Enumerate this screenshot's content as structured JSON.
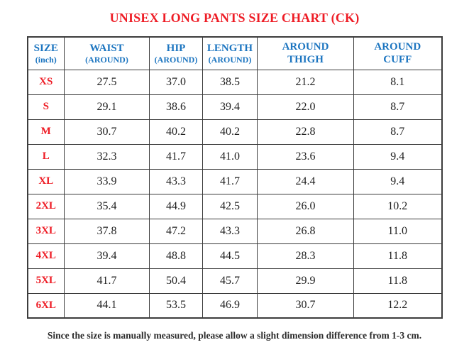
{
  "title": "UNISEX LONG PANTS SIZE CHART (CK)",
  "footer_note": "Since the size is manually measured, please allow a slight dimension difference from 1-3 cm.",
  "colors": {
    "title_red": "#ee1c25",
    "size_red": "#ee1c25",
    "header_blue": "#1c75c0",
    "value_black": "#1f1f1f",
    "border_gray": "#3c3c3c"
  },
  "table": {
    "columns": [
      {
        "key": "size",
        "line1": "SIZE",
        "line2": "(inch)",
        "small_line2": true
      },
      {
        "key": "waist",
        "line1": "WAIST",
        "line2": "(AROUND)",
        "small_line2": true
      },
      {
        "key": "hip",
        "line1": "HIP",
        "line2": "(AROUND)",
        "small_line2": true
      },
      {
        "key": "length",
        "line1": "LENGTH",
        "line2": "(AROUND)",
        "small_line2": true
      },
      {
        "key": "thigh",
        "line1": "AROUND",
        "line2": "THIGH",
        "small_line2": false
      },
      {
        "key": "cuff",
        "line1": "AROUND",
        "line2": "CUFF",
        "small_line2": false
      }
    ],
    "rows": [
      {
        "size": "XS",
        "values": [
          "27.5",
          "37.0",
          "38.5",
          "21.2",
          "8.1"
        ]
      },
      {
        "size": "S",
        "values": [
          "29.1",
          "38.6",
          "39.4",
          "22.0",
          "8.7"
        ]
      },
      {
        "size": "M",
        "values": [
          "30.7",
          "40.2",
          "40.2",
          "22.8",
          "8.7"
        ]
      },
      {
        "size": "L",
        "values": [
          "32.3",
          "41.7",
          "41.0",
          "23.6",
          "9.4"
        ]
      },
      {
        "size": "XL",
        "values": [
          "33.9",
          "43.3",
          "41.7",
          "24.4",
          "9.4"
        ]
      },
      {
        "size": "2XL",
        "values": [
          "35.4",
          "44.9",
          "42.5",
          "26.0",
          "10.2"
        ]
      },
      {
        "size": "3XL",
        "values": [
          "37.8",
          "47.2",
          "43.3",
          "26.8",
          "11.0"
        ]
      },
      {
        "size": "4XL",
        "values": [
          "39.4",
          "48.8",
          "44.5",
          "28.3",
          "11.8"
        ]
      },
      {
        "size": "5XL",
        "values": [
          "41.7",
          "50.4",
          "45.7",
          "29.9",
          "11.8"
        ]
      },
      {
        "size": "6XL",
        "values": [
          "44.1",
          "53.5",
          "46.9",
          "30.7",
          "12.2"
        ]
      }
    ]
  }
}
